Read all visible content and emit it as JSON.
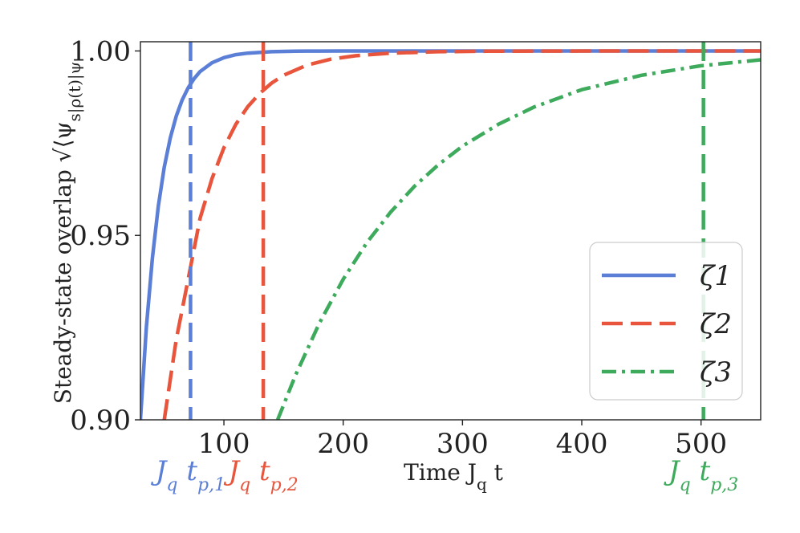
{
  "chart_data": {
    "type": "line",
    "xlabel": "Time J_q t",
    "ylabel": "Steady-state overlap √⟨ψ_s|ρ(t)|ψ_s⟩",
    "xlim": [
      30,
      550
    ],
    "ylim": [
      0.9,
      1.0025
    ],
    "x_ticks": [
      100,
      200,
      300,
      400,
      500
    ],
    "x_tick_labels": [
      "100",
      "200",
      "300",
      "400",
      "500"
    ],
    "y_ticks": [
      0.9,
      0.95,
      1.0
    ],
    "y_tick_labels": [
      "0.90",
      "0.95",
      "1.00"
    ],
    "grid": false,
    "legend_position": "lower-right",
    "series": [
      {
        "name": "ζ1",
        "color": "#5b7fd6",
        "dash": "solid",
        "x": [
          30,
          35,
          40,
          45,
          50,
          55,
          60,
          65,
          70,
          75,
          80,
          90,
          100,
          110,
          120,
          140,
          160,
          180,
          200,
          250,
          300,
          400,
          550
        ],
        "y": [
          0.9,
          0.9251,
          0.9438,
          0.9579,
          0.9685,
          0.9764,
          0.9823,
          0.9867,
          0.99,
          0.9925,
          0.9944,
          0.9968,
          0.9982,
          0.999,
          0.9994,
          0.9998,
          0.99995,
          0.99998,
          1.0,
          1.0,
          1.0,
          1.0,
          1.0
        ]
      },
      {
        "name": "ζ2",
        "color": "#e8553c",
        "dash": "dashed",
        "x": [
          50,
          60,
          70,
          80,
          90,
          100,
          110,
          120,
          130,
          140,
          150,
          170,
          190,
          210,
          240,
          280,
          320,
          380,
          450,
          550
        ],
        "y": [
          0.9,
          0.9217,
          0.9381,
          0.9546,
          0.9654,
          0.9738,
          0.9801,
          0.9849,
          0.9885,
          0.9913,
          0.9934,
          0.9962,
          0.9978,
          0.9987,
          0.9994,
          0.9998,
          0.99993,
          0.99998,
          1.0,
          1.0
        ]
      },
      {
        "name": "ζ3",
        "color": "#3daa5c",
        "dash": "dashdot",
        "x": [
          145,
          160,
          180,
          200,
          220,
          240,
          260,
          280,
          300,
          330,
          360,
          400,
          450,
          500,
          550
        ],
        "y": [
          0.9,
          0.9121,
          0.9262,
          0.9381,
          0.9481,
          0.9564,
          0.9634,
          0.9692,
          0.9742,
          0.9801,
          0.9848,
          0.9895,
          0.9934,
          0.996,
          0.9976
        ]
      }
    ],
    "markers": [
      {
        "x": 72,
        "color": "#5b7fd6",
        "label": "J_q t_p,1"
      },
      {
        "x": 133,
        "color": "#e8553c",
        "label": "J_q t_p,2"
      },
      {
        "x": 502,
        "color": "#3daa5c",
        "label": "J_q t_p,3"
      }
    ]
  }
}
